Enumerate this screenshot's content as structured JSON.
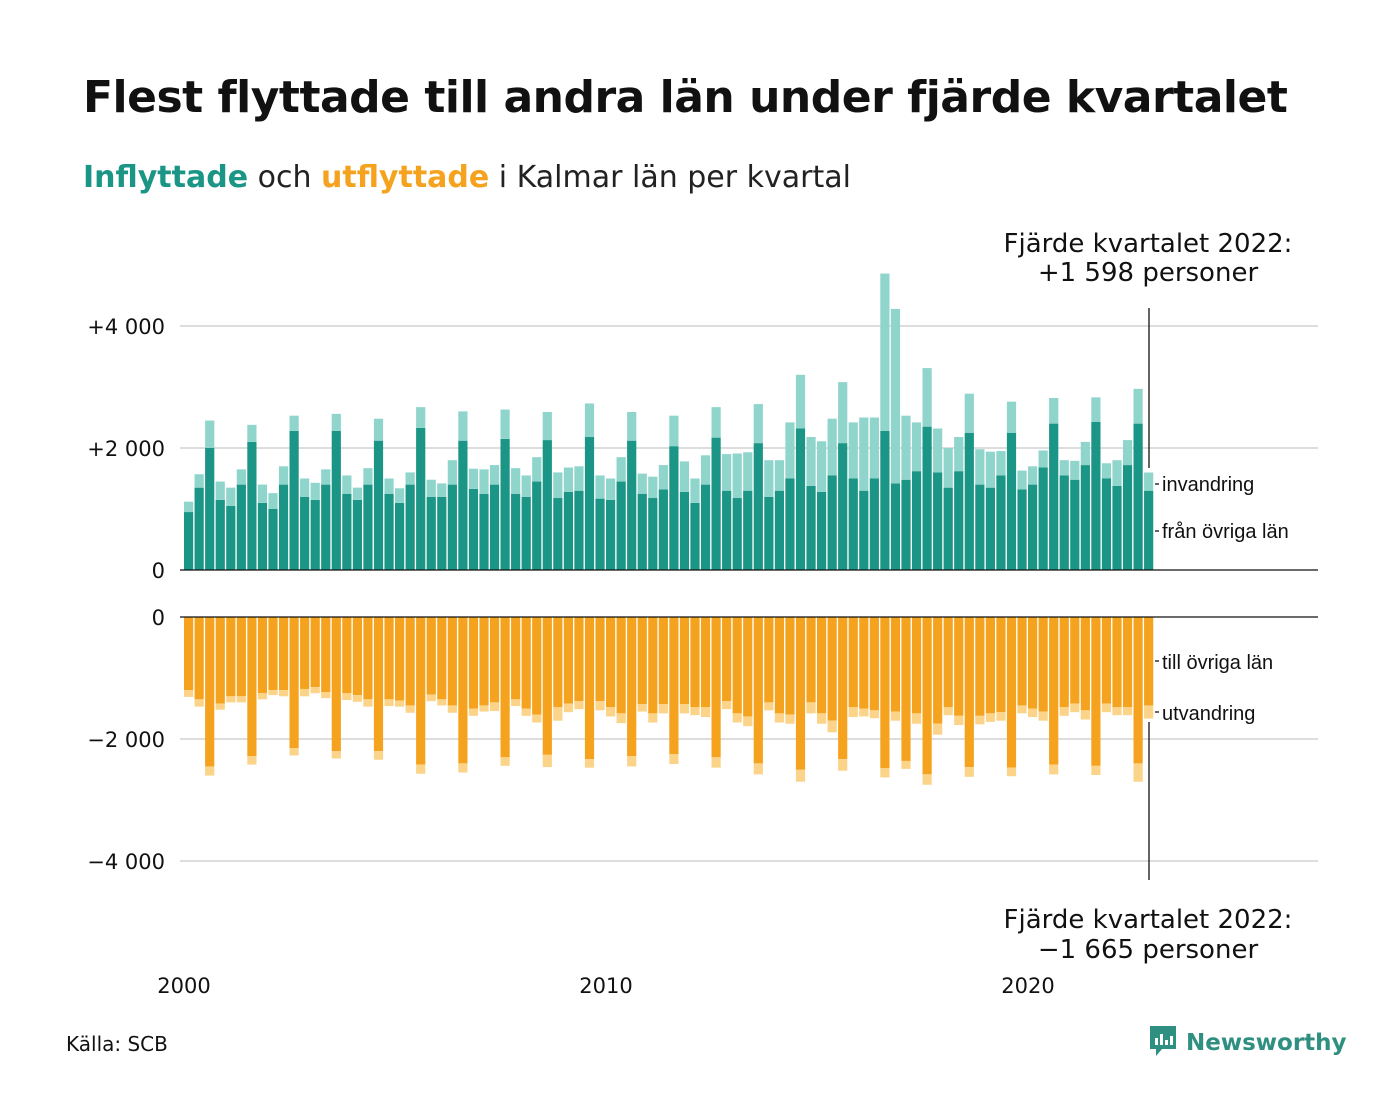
{
  "title": "Flest flyttade till andra län under fjärde kvartalet",
  "subtitle": {
    "part1": "Inflyttade",
    "part2": " och ",
    "part3": "utflyttade",
    "part4": " i Kalmar län per kvartal"
  },
  "colors": {
    "in_dark": "#1b9585",
    "in_light": "#8fd5cc",
    "out_dark": "#f5a31e",
    "out_light": "#fbd48a",
    "grid": "#dddddd",
    "text": "#111111",
    "brand": "#2f8f80"
  },
  "source": "Källa: SCB",
  "brand": {
    "name": "Newsworthy",
    "icon": "newsworthy-logo-icon"
  },
  "annotations": {
    "top_line1": "Fjärde kvartalet 2022:",
    "top_line2": "+1 598 personer",
    "bottom_line1": "Fjärde kvartalet 2022:",
    "bottom_line2": "−1 665 personer"
  },
  "legend": {
    "invandring": "invandring",
    "fran_ovriga_lan": "från övriga län",
    "till_ovriga_lan": "till övriga län",
    "utvandring": "utvandring"
  },
  "axes": {
    "top_ticks": [
      {
        "value": 4000,
        "label": "+4 000"
      },
      {
        "value": 2000,
        "label": "+2 000"
      },
      {
        "value": 0,
        "label": "0"
      }
    ],
    "bottom_ticks": [
      {
        "value": 0,
        "label": "0"
      },
      {
        "value": -2000,
        "label": "−2 000"
      },
      {
        "value": -4000,
        "label": "−4 000"
      }
    ],
    "x_ticks": [
      {
        "quarter_index": 0,
        "label": "2000"
      },
      {
        "quarter_index": 40,
        "label": "2010"
      },
      {
        "quarter_index": 80,
        "label": "2020"
      }
    ]
  },
  "chart_data": {
    "type": "bar",
    "x_start": "2000 Q1",
    "x_end": "2022 Q4",
    "ylim_top": [
      0,
      4000
    ],
    "ylim_bottom": [
      -4000,
      0
    ],
    "grid": true,
    "series": [
      {
        "name": "från övriga län",
        "values": [
          950,
          1350,
          2000,
          1150,
          1050,
          1400,
          2100,
          1100,
          1000,
          1400,
          2280,
          1200,
          1150,
          1400,
          2280,
          1250,
          1150,
          1400,
          2120,
          1250,
          1100,
          1400,
          2330,
          1200,
          1200,
          1400,
          2120,
          1330,
          1250,
          1400,
          2150,
          1250,
          1200,
          1450,
          2130,
          1180,
          1280,
          1300,
          2180,
          1170,
          1150,
          1450,
          2120,
          1250,
          1180,
          1320,
          2030,
          1280,
          1100,
          1400,
          2170,
          1300,
          1180,
          1300,
          2080,
          1200,
          1300,
          1500,
          2320,
          1380,
          1280,
          1550,
          2080,
          1500,
          1300,
          1500,
          2280,
          1420,
          1480,
          1620,
          2350,
          1600,
          1350,
          1620,
          2250,
          1400,
          1350,
          1550,
          2250,
          1320,
          1400,
          1680,
          2400,
          1550,
          1480,
          1720,
          2430,
          1500,
          1380,
          1720,
          2400,
          1300
        ]
      },
      {
        "name": "invandring",
        "values": [
          170,
          220,
          450,
          300,
          300,
          250,
          280,
          300,
          260,
          300,
          250,
          300,
          280,
          250,
          280,
          300,
          200,
          270,
          360,
          250,
          240,
          200,
          340,
          280,
          220,
          400,
          480,
          330,
          400,
          320,
          480,
          420,
          350,
          400,
          460,
          420,
          400,
          400,
          550,
          380,
          350,
          400,
          470,
          330,
          350,
          400,
          500,
          500,
          400,
          480,
          500,
          600,
          730,
          630,
          640,
          600,
          500,
          920,
          880,
          800,
          830,
          930,
          1000,
          920,
          1200,
          1000,
          2580,
          2860,
          1050,
          800,
          960,
          720,
          650,
          560,
          640,
          580,
          590,
          400,
          510,
          310,
          300,
          280,
          420,
          250,
          310,
          380,
          400,
          250,
          420,
          410,
          570,
          298
        ]
      },
      {
        "name": "till övriga län",
        "values": [
          -1200,
          -1350,
          -2450,
          -1420,
          -1300,
          -1300,
          -2280,
          -1250,
          -1200,
          -1200,
          -2150,
          -1180,
          -1150,
          -1230,
          -2200,
          -1250,
          -1280,
          -1350,
          -2200,
          -1350,
          -1370,
          -1450,
          -2420,
          -1270,
          -1350,
          -1450,
          -2400,
          -1500,
          -1450,
          -1400,
          -2300,
          -1350,
          -1500,
          -1600,
          -2260,
          -1480,
          -1420,
          -1380,
          -2330,
          -1380,
          -1480,
          -1580,
          -2280,
          -1430,
          -1580,
          -1430,
          -2250,
          -1430,
          -1480,
          -1480,
          -2300,
          -1380,
          -1580,
          -1630,
          -2400,
          -1400,
          -1580,
          -1600,
          -2500,
          -1400,
          -1580,
          -1700,
          -2330,
          -1480,
          -1500,
          -1530,
          -2480,
          -1550,
          -2360,
          -1580,
          -2580,
          -1750,
          -1480,
          -1620,
          -2460,
          -1620,
          -1580,
          -1560,
          -2470,
          -1450,
          -1500,
          -1550,
          -2420,
          -1480,
          -1420,
          -1530,
          -2440,
          -1420,
          -1480,
          -1480,
          -2400,
          -1450
        ]
      },
      {
        "name": "utvandring",
        "values": [
          -110,
          -120,
          -150,
          -100,
          -100,
          -100,
          -140,
          -100,
          -80,
          -100,
          -120,
          -120,
          -100,
          -100,
          -120,
          -110,
          -110,
          -120,
          -140,
          -110,
          -100,
          -120,
          -150,
          -110,
          -100,
          -120,
          -150,
          -120,
          -100,
          -140,
          -140,
          -110,
          -120,
          -130,
          -200,
          -220,
          -140,
          -130,
          -140,
          -150,
          -150,
          -160,
          -170,
          -120,
          -150,
          -150,
          -160,
          -150,
          -130,
          -160,
          -170,
          -130,
          -150,
          -160,
          -180,
          -130,
          -150,
          -150,
          -200,
          -180,
          -170,
          -190,
          -190,
          -160,
          -130,
          -130,
          -150,
          -150,
          -130,
          -170,
          -170,
          -180,
          -130,
          -150,
          -160,
          -140,
          -140,
          -140,
          -140,
          -130,
          -140,
          -150,
          -160,
          -140,
          -140,
          -150,
          -150,
          -140,
          -130,
          -130,
          -300,
          -215
        ]
      }
    ]
  }
}
